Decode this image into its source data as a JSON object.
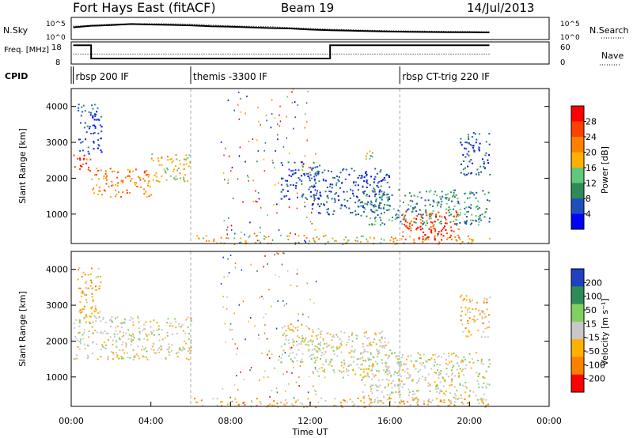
{
  "header": {
    "station": "Fort Hays East (fitACF)",
    "beam": "Beam 19",
    "date": "14/Jul/2013"
  },
  "colors": {
    "power_scale": [
      "#0000ff",
      "#1f4fbf",
      "#2e8b57",
      "#5fc87a",
      "#ffb000",
      "#ff8000",
      "#ff4000",
      "#ff0000"
    ],
    "velocity_scale": [
      "#2040c0",
      "#2e8b57",
      "#80d060",
      "#c8c8c8",
      "#ffb000",
      "#ff8000",
      "#ff0000"
    ]
  },
  "chart_data": [
    {
      "type": "line",
      "name": "sky-noise-panel",
      "left_label": "N.Sky",
      "right_label": "N.Search",
      "left_ticks": [
        "10^5",
        "10^0"
      ],
      "right_ticks": [
        "10^5",
        "10^0"
      ],
      "xlim": [
        0,
        24
      ],
      "series": [
        {
          "name": "N.Sky",
          "style": "solid",
          "x": [
            0.1,
            1,
            2,
            3,
            4,
            5,
            6,
            7,
            8,
            9,
            10,
            11,
            12,
            13,
            14,
            15,
            16,
            17,
            18,
            19,
            20,
            21
          ],
          "values": [
            0.55,
            0.62,
            0.65,
            0.7,
            0.68,
            0.66,
            0.64,
            0.6,
            0.58,
            0.55,
            0.52,
            0.5,
            0.45,
            0.42,
            0.4,
            0.38,
            0.36,
            0.35,
            0.34,
            0.33,
            0.33,
            0.32
          ]
        },
        {
          "name": "N.Search",
          "style": "dotted",
          "x": [
            0.1,
            2,
            4,
            6,
            8,
            10,
            12,
            14,
            16,
            18,
            20,
            21
          ],
          "values": [
            0.6,
            0.7,
            0.72,
            0.7,
            0.62,
            0.58,
            0.5,
            0.44,
            0.4,
            0.38,
            0.36,
            0.35
          ]
        }
      ]
    },
    {
      "type": "line",
      "name": "frequency-panel",
      "left_label": "Freq. [MHz]",
      "right_label": "Nave",
      "left_ticks": [
        "18",
        "8"
      ],
      "right_ticks": [
        "60",
        "0"
      ],
      "xlim": [
        0,
        24
      ],
      "series": [
        {
          "name": "Freq.",
          "style": "solid",
          "x": [
            0.1,
            1,
            1,
            13,
            13,
            21
          ],
          "values": [
            0.85,
            0.85,
            0.25,
            0.25,
            0.85,
            0.85
          ]
        },
        {
          "name": "Nave",
          "style": "dotted",
          "x": [
            0.1,
            21
          ],
          "values": [
            0.45,
            0.45
          ]
        }
      ]
    },
    {
      "type": "table",
      "name": "cpid-strip",
      "label": "CPID",
      "segments": [
        {
          "start": 0.1,
          "label": "rbsp 200 IF"
        },
        {
          "start": 6.0,
          "label": "themis -3300 IF"
        },
        {
          "start": 16.5,
          "label": "rbsp CT-trig 220 IF"
        }
      ]
    },
    {
      "type": "heatmap",
      "name": "power-panel",
      "xlabel": "",
      "ylabel": "Slant Range [km]",
      "xlim": [
        0,
        24
      ],
      "ylim": [
        180,
        4500
      ],
      "yticks": [
        1000,
        2000,
        3000,
        4000
      ],
      "colorbar": {
        "label": "Power [dB]",
        "ticks": [
          "4",
          "8",
          "12",
          "16",
          "20",
          "24",
          "28"
        ]
      },
      "patches": [
        {
          "t0": 0.1,
          "t1": 1.0,
          "r0": 2200,
          "r1": 2700,
          "level": 6
        },
        {
          "t0": 1.0,
          "t1": 4.0,
          "r0": 1500,
          "r1": 2300,
          "level": 5
        },
        {
          "t0": 4.0,
          "t1": 6.0,
          "r0": 1900,
          "r1": 2700,
          "level": 4
        },
        {
          "t0": 0.3,
          "t1": 1.5,
          "r0": 2700,
          "r1": 4100,
          "level": 1
        },
        {
          "t0": 10.5,
          "t1": 12.5,
          "r0": 1400,
          "r1": 2500,
          "level": 1
        },
        {
          "t0": 12.0,
          "t1": 16.0,
          "r0": 1000,
          "r1": 2300,
          "level": 1
        },
        {
          "t0": 14.5,
          "t1": 21.0,
          "r0": 700,
          "r1": 1700,
          "level": 2
        },
        {
          "t0": 16.5,
          "t1": 19.5,
          "r0": 300,
          "r1": 1100,
          "level": 6
        },
        {
          "t0": 17.5,
          "t1": 18.8,
          "r0": 300,
          "r1": 700,
          "level": 7
        },
        {
          "t0": 19.5,
          "t1": 21.0,
          "r0": 2100,
          "r1": 3300,
          "level": 1
        },
        {
          "t0": 14.5,
          "t1": 15.2,
          "r0": 2500,
          "r1": 2800,
          "level": 3
        }
      ]
    },
    {
      "type": "heatmap",
      "name": "velocity-panel",
      "xlabel": "Time UT",
      "ylabel": "Slant Range [km]",
      "xlim": [
        0,
        24
      ],
      "ylim": [
        180,
        4500
      ],
      "yticks": [
        1000,
        2000,
        3000,
        4000
      ],
      "xticks": [
        "00:00",
        "04:00",
        "08:00",
        "12:00",
        "16:00",
        "20:00",
        "00:00"
      ],
      "colorbar": {
        "label": "Velocity [m s⁻¹]",
        "ticks": [
          "200",
          "100",
          "50",
          "15",
          "-15",
          "-50",
          "-100",
          "-200"
        ]
      },
      "patches": [
        {
          "t0": 0.1,
          "t1": 6.0,
          "r0": 1500,
          "r1": 2700,
          "level": 3
        },
        {
          "t0": 0.3,
          "t1": 1.5,
          "r0": 2700,
          "r1": 4100,
          "level": 4
        },
        {
          "t0": 10.5,
          "t1": 12.5,
          "r0": 1400,
          "r1": 2500,
          "level": 3
        },
        {
          "t0": 12.0,
          "t1": 16.0,
          "r0": 1000,
          "r1": 2300,
          "level": 3
        },
        {
          "t0": 14.5,
          "t1": 21.0,
          "r0": 300,
          "r1": 1700,
          "level": 3
        },
        {
          "t0": 19.5,
          "t1": 21.0,
          "r0": 2100,
          "r1": 3300,
          "level": 4
        }
      ]
    }
  ]
}
